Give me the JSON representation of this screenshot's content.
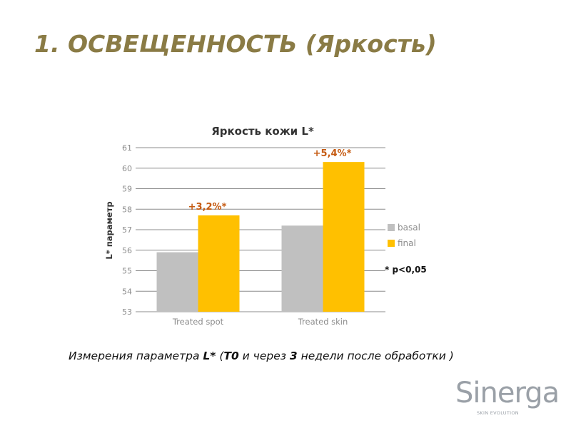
{
  "slide": {
    "title": "1. ОСВЕЩЕННОСТЬ (Яркость)",
    "caption_parts": {
      "p1": "Измерения параметра ",
      "b1": "L*",
      "p2": " (",
      "b2": "T0",
      "p3": " и через ",
      "b3": "3",
      "p4": " недели после обработки )"
    }
  },
  "logo": {
    "word": "Sinerga",
    "tagline": "SKIN EVOLUTION"
  },
  "colors": {
    "title": "#8a7b45",
    "basal": "#c0c0c0",
    "final": "#ffc000",
    "annotation": "#c55a11",
    "grid": "#8c8c8c",
    "tick": "#8c8c8c"
  },
  "chart_data": {
    "type": "bar",
    "title": "Яркость кожи L*",
    "ylabel": "L* параметр",
    "xlabel": "",
    "categories": [
      "Treated spot",
      "Treated skin"
    ],
    "series": [
      {
        "name": "basal",
        "values": [
          55.9,
          57.2
        ]
      },
      {
        "name": "final",
        "values": [
          57.7,
          60.3
        ]
      }
    ],
    "ylim": [
      53,
      61
    ],
    "yticks": [
      "53",
      "54",
      "55",
      "56",
      "57",
      "58",
      "59",
      "60",
      "61"
    ],
    "grid": true,
    "legend": "right",
    "annotations": [
      {
        "category": "Treated spot",
        "series": "final",
        "text": "+3,2%*"
      },
      {
        "category": "Treated skin",
        "series": "final",
        "text": "+5,4%*"
      }
    ],
    "footnote": "* p<0,05"
  }
}
